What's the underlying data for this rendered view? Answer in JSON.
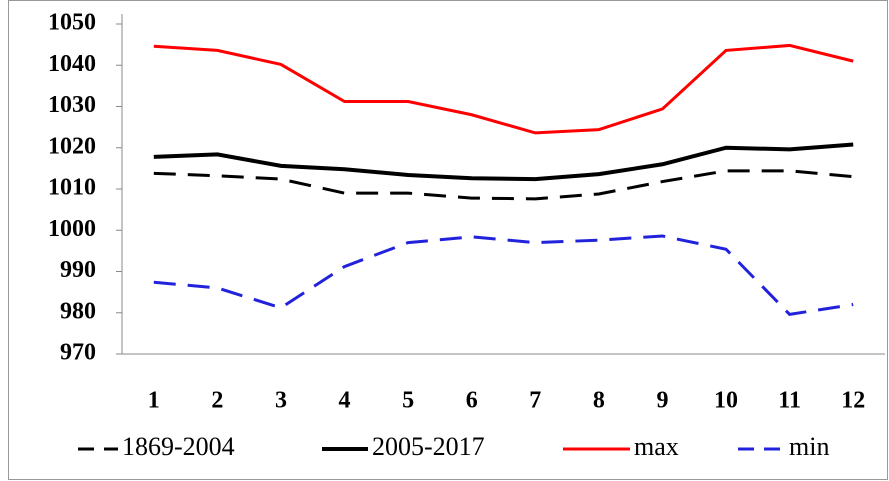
{
  "chart_data": {
    "type": "line",
    "categories": [
      "1",
      "2",
      "3",
      "4",
      "5",
      "6",
      "7",
      "8",
      "9",
      "10",
      "11",
      "12"
    ],
    "series": [
      {
        "name": "1869-2004",
        "color": "#000000",
        "dash": true,
        "values": [
          1013.8,
          1013.2,
          1012.4,
          1009,
          1009,
          1007.8,
          1007.6,
          1008.8,
          1011.8,
          1014.4,
          1014.4,
          1013
        ]
      },
      {
        "name": "2005-2017",
        "color": "#000000",
        "dash": false,
        "values": [
          1017.8,
          1018.4,
          1015.6,
          1014.8,
          1013.4,
          1012.6,
          1012.4,
          1013.6,
          1016,
          1020,
          1019.6,
          1020.8
        ]
      },
      {
        "name": "max",
        "color": "#ff0000",
        "dash": false,
        "values": [
          1044.6,
          1043.6,
          1040.2,
          1031.2,
          1031.2,
          1028,
          1023.6,
          1024.4,
          1029.4,
          1043.6,
          1044.8,
          1041
        ]
      },
      {
        "name": "min",
        "color": "#2222dd",
        "dash": true,
        "values": [
          987.4,
          986,
          981.2,
          991.2,
          997,
          998.4,
          997,
          997.6,
          998.6,
          995.4,
          979.6,
          982
        ]
      }
    ],
    "ylim": [
      970,
      1050
    ],
    "yticks": [
      970,
      980,
      990,
      1000,
      1010,
      1020,
      1030,
      1040,
      1050
    ],
    "legend": "bottom"
  }
}
